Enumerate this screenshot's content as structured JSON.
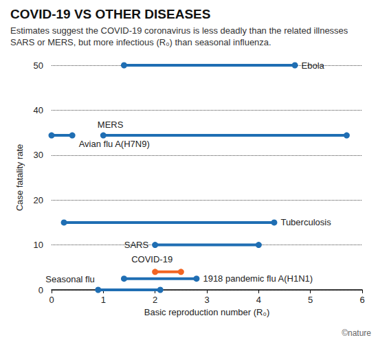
{
  "chart_data": {
    "type": "range",
    "title": "COVID-19 VS OTHER DISEASES",
    "subtitle": "Estimates suggest the COVID-19 coronavirus is less deadly than the related illnesses SARS or MERS, but more infectious (R₀) than seasonal influenza.",
    "x_label": "Basic reproduction number (R₀)",
    "y_label": "Case fatality rate",
    "credit": "©nature",
    "xlim": [
      0,
      6
    ],
    "xticks": [
      0,
      1,
      2,
      3,
      4,
      5,
      6
    ],
    "ylim": [
      0,
      50
    ],
    "yticks": [
      0,
      10,
      20,
      30,
      40,
      50
    ],
    "grid": true,
    "marker": "circle",
    "series": [
      {
        "name": "Ebola",
        "color": "#1f6eb3",
        "x": [
          1.4,
          4.7
        ],
        "values": [
          50,
          50
        ]
      },
      {
        "name": "MERS",
        "color": "#1f6eb3",
        "x": [
          1.0,
          5.7
        ],
        "values": [
          34.4,
          34.4
        ]
      },
      {
        "name": "Avian flu A(H7N9)",
        "color": "#1f6eb3",
        "x": [
          0.0,
          0.4
        ],
        "values": [
          34.4,
          34.4
        ]
      },
      {
        "name": "Tuberculosis",
        "color": "#1f6eb3",
        "x": [
          0.24,
          4.3
        ],
        "values": [
          15,
          15
        ]
      },
      {
        "name": "SARS",
        "color": "#1f6eb3",
        "x": [
          2.0,
          4.0
        ],
        "values": [
          10,
          10
        ]
      },
      {
        "name": "COVID-19",
        "color": "#f26522",
        "x": [
          2.0,
          2.5
        ],
        "values": [
          4,
          4
        ]
      },
      {
        "name": "1918 pandemic flu A(H1N1)",
        "color": "#1f6eb3",
        "x": [
          1.4,
          2.8
        ],
        "values": [
          2.5,
          2.5
        ]
      },
      {
        "name": "Seasonal flu",
        "color": "#1f6eb3",
        "x": [
          0.9,
          2.1
        ],
        "values": [
          0,
          0
        ]
      }
    ]
  }
}
